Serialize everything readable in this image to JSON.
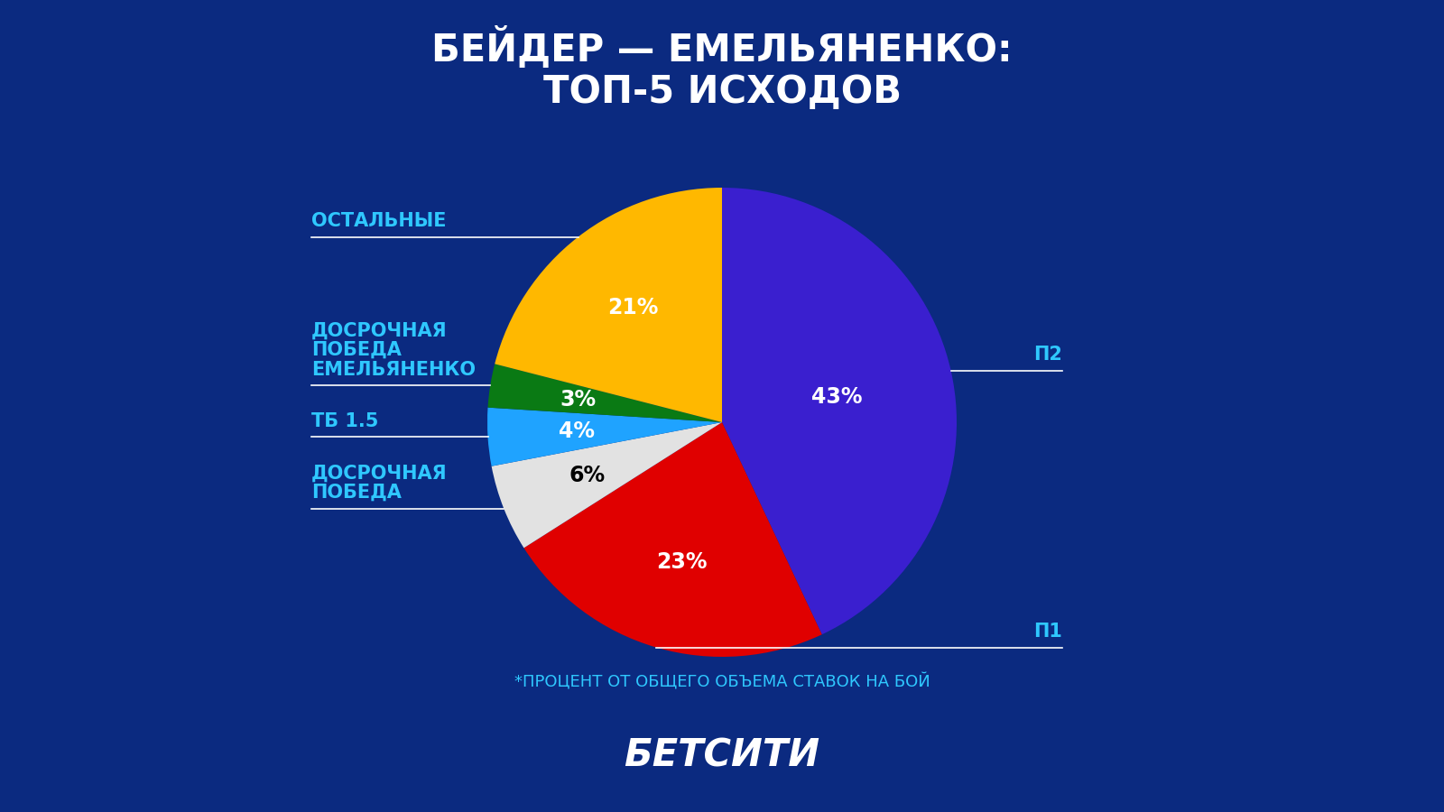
{
  "chart_data": {
    "type": "pie",
    "title": "БЕЙДЕР — ЕМЕЛЬЯНЕНКО:\nТОП-5 ИСХОДОВ",
    "categories": [
      "П2",
      "П1",
      "ДОСРОЧНАЯ\nПОБЕДА",
      "ТБ 1.5",
      "ДОСРОЧНАЯ\nПОБЕДА\nЕМЕЛЬЯНЕНКО",
      "ОСТАЛЬНЫЕ"
    ],
    "values": [
      43,
      23,
      6,
      4,
      3,
      21
    ],
    "value_labels": [
      "43%",
      "23%",
      "6%",
      "4%",
      "3%",
      "21%"
    ],
    "colors": [
      "#3a1fcf",
      "#e00000",
      "#e2e2e2",
      "#1fa3ff",
      "#0a7a14",
      "#ffb800"
    ],
    "data_labels": true,
    "footnote": "*ПРОЦЕНТ ОТ ОБЩЕГО ОБЪЕМА СТАВОК НА БОЙ",
    "brand": "БЕТСИТИ"
  }
}
